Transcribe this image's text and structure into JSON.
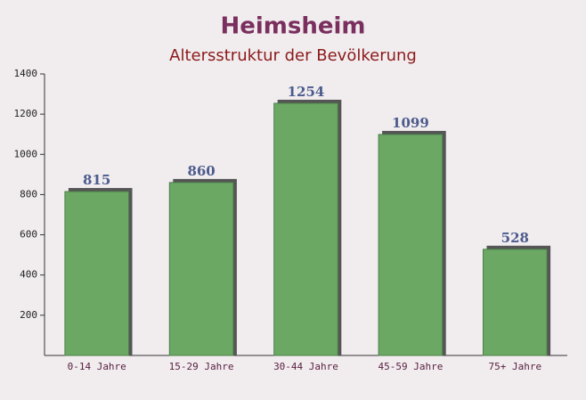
{
  "chart_data": {
    "type": "bar",
    "title": "Heimsheim",
    "subtitle": "Altersstruktur der Bevölkerung",
    "categories": [
      "0-14 Jahre",
      "15-29 Jahre",
      "30-44 Jahre",
      "45-59 Jahre",
      "75+ Jahre"
    ],
    "values": [
      815,
      860,
      1254,
      1099,
      528
    ],
    "color": "#6aa864",
    "ylim": [
      0,
      1400
    ],
    "yticks": [
      200,
      400,
      600,
      800,
      1000,
      1200,
      1400
    ],
    "grid": false
  }
}
